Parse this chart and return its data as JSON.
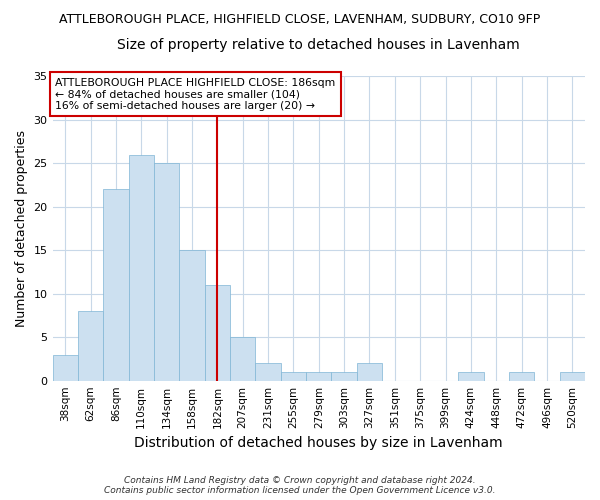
{
  "title": "ATTLEBOROUGH PLACE, HIGHFIELD CLOSE, LAVENHAM, SUDBURY, CO10 9FP",
  "subtitle": "Size of property relative to detached houses in Lavenham",
  "xlabel": "Distribution of detached houses by size in Lavenham",
  "ylabel": "Number of detached properties",
  "categories": [
    "38sqm",
    "62sqm",
    "86sqm",
    "110sqm",
    "134sqm",
    "158sqm",
    "182sqm",
    "207sqm",
    "231sqm",
    "255sqm",
    "279sqm",
    "303sqm",
    "327sqm",
    "351sqm",
    "375sqm",
    "399sqm",
    "424sqm",
    "448sqm",
    "472sqm",
    "496sqm",
    "520sqm"
  ],
  "values": [
    3,
    8,
    22,
    26,
    25,
    15,
    11,
    5,
    2,
    1,
    1,
    1,
    2,
    0,
    0,
    0,
    1,
    0,
    1,
    0,
    1
  ],
  "bar_color": "#cce0f0",
  "bar_edge_color": "#7fb5d5",
  "ylim": [
    0,
    35
  ],
  "yticks": [
    0,
    5,
    10,
    15,
    20,
    25,
    30,
    35
  ],
  "vline_x": 6,
  "vline_color": "#cc0000",
  "annotation_lines": [
    "ATTLEBOROUGH PLACE HIGHFIELD CLOSE: 186sqm",
    "← 84% of detached houses are smaller (104)",
    "16% of semi-detached houses are larger (20) →"
  ],
  "annotation_box_color": "#cc0000",
  "footer_line1": "Contains HM Land Registry data © Crown copyright and database right 2024.",
  "footer_line2": "Contains public sector information licensed under the Open Government Licence v3.0.",
  "bg_color": "#ffffff",
  "grid_color": "#c8d8e8",
  "title_fontsize": 9,
  "subtitle_fontsize": 10,
  "ylabel_fontsize": 9,
  "xlabel_fontsize": 10
}
